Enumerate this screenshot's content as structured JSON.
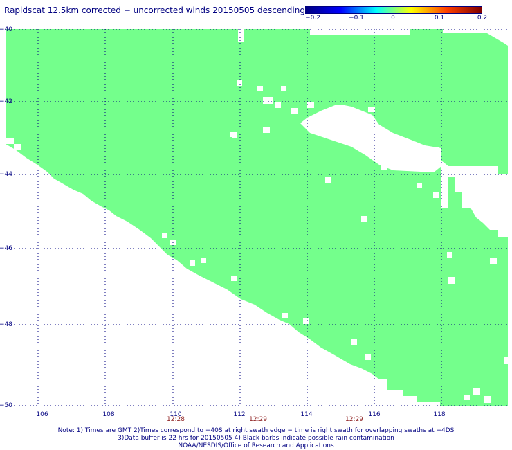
{
  "title": "Rapidscat 12.5km corrected − uncorrected winds 20150505 descending",
  "colorbar": {
    "ticks": [
      "−0.2",
      "−0.1",
      "0",
      "0.1",
      "0.2"
    ],
    "range": [
      -0.2,
      0.2
    ],
    "colors": [
      "#000080",
      "#0000ff",
      "#00ffff",
      "#ffff00",
      "#ff4000",
      "#800000"
    ]
  },
  "map": {
    "lon_range": [
      105,
      120
    ],
    "lat_range": [
      -50,
      -40
    ],
    "x_ticks": [
      "106",
      "108",
      "110",
      "112",
      "114",
      "116",
      "118"
    ],
    "y_ticks": [
      "−40",
      "−42",
      "−44",
      "−46",
      "−48",
      "−50"
    ],
    "field_color": "#74ff8c",
    "field_value": 0,
    "grid_color": "#000080",
    "grid": "dotted"
  },
  "times": [
    "12:28",
    "12:29",
    "12:29"
  ],
  "notes": [
    "Note: 1) Times are GMT 2)Times correspond to −40S at right swath edge − time is right swath for overlapping swaths at −4DS",
    "3)Data buffer is 22 hrs for 20150505 4) Black barbs indicate possible rain contamination",
    "NOAA/NESDIS/Office of Research and Applications"
  ]
}
